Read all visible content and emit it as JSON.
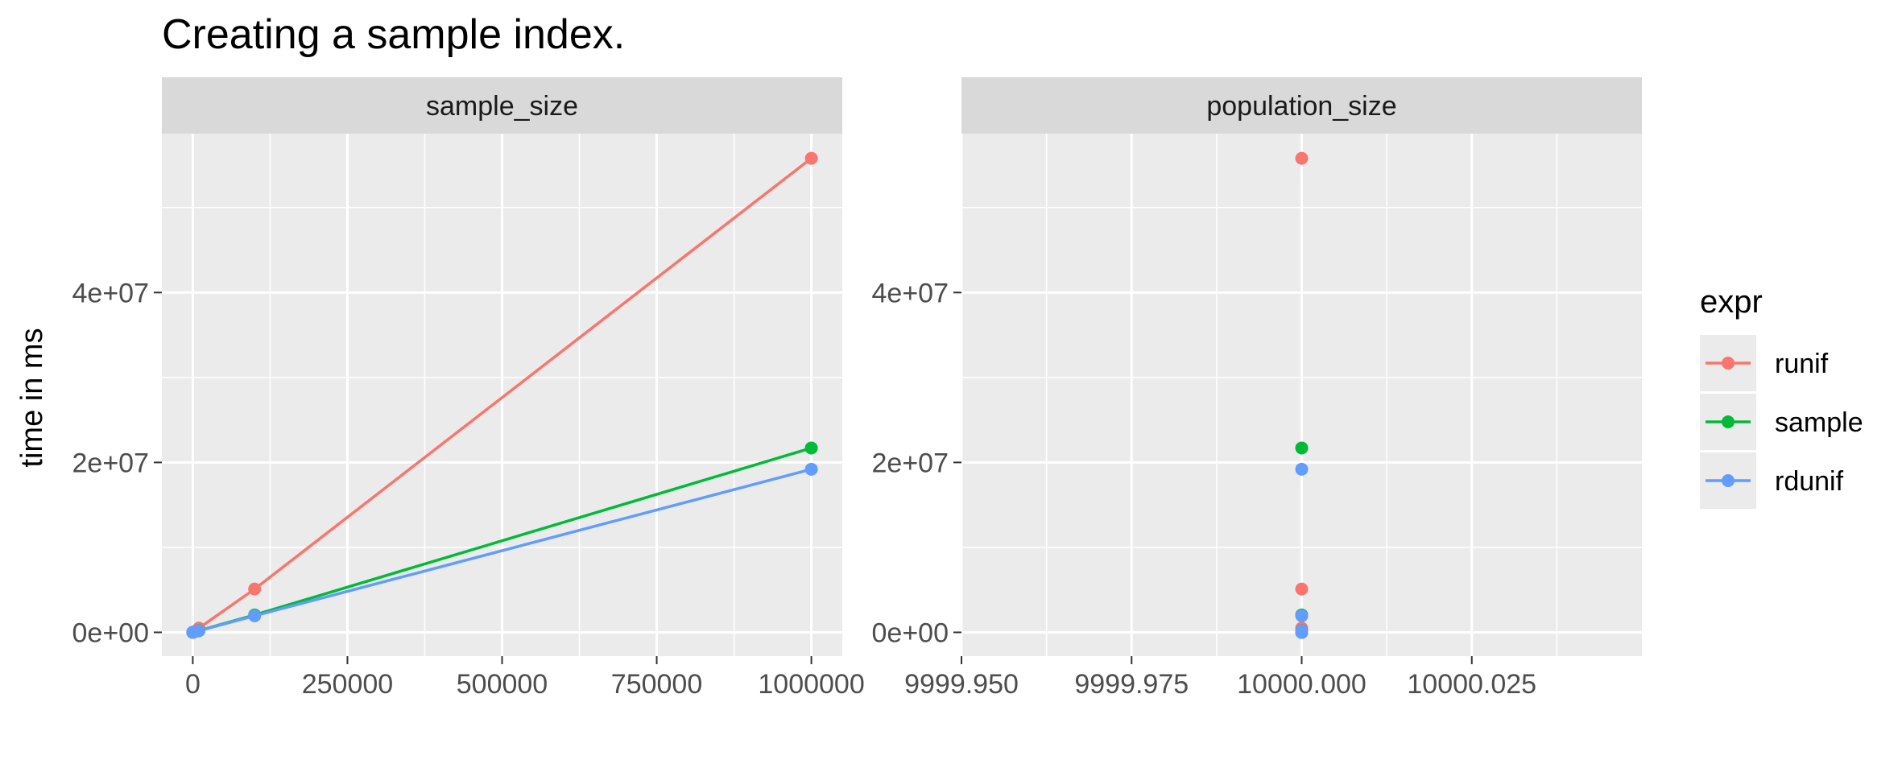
{
  "title": "Creating a sample index.",
  "ylabel": "time in ms",
  "legend": {
    "title": "expr",
    "entries": [
      "runif",
      "sample",
      "rdunif"
    ]
  },
  "colors": {
    "runif": "#F8766D",
    "sample": "#00BA38",
    "rdunif": "#619CFF",
    "panel_bg": "#EBEBEB",
    "strip_bg": "#D9D9D9",
    "grid": "#FFFFFF"
  },
  "chart_data": [
    {
      "type": "line",
      "facet": "sample_size",
      "x": [
        10,
        100,
        1000,
        10000,
        100000,
        1000000
      ],
      "series": [
        {
          "name": "runif",
          "values": [
            700,
            4200,
            40000,
            500000,
            5100000,
            55800000
          ]
        },
        {
          "name": "sample",
          "values": [
            500,
            2500,
            22000,
            210000,
            2050000,
            21700000
          ]
        },
        {
          "name": "rdunif",
          "values": [
            450,
            2300,
            20000,
            190000,
            1950000,
            19200000
          ]
        }
      ],
      "xlim": [
        -50000,
        1050000
      ],
      "ylim": [
        -2800000,
        58700000
      ],
      "xticks": [
        0,
        250000,
        500000,
        750000,
        1000000
      ],
      "xtick_labels": [
        "0",
        "250000",
        "500000",
        "750000",
        "1000000"
      ],
      "yticks": [
        0,
        20000000,
        40000000
      ],
      "ytick_labels": [
        "0e+00",
        "2e+07",
        "4e+07"
      ],
      "grid": true
    },
    {
      "type": "scatter",
      "facet": "population_size",
      "x": [
        10000,
        10000,
        10000,
        10000,
        10000,
        10000
      ],
      "series": [
        {
          "name": "runif",
          "values": [
            700,
            4200,
            40000,
            500000,
            5100000,
            55800000
          ]
        },
        {
          "name": "sample",
          "values": [
            500,
            2500,
            22000,
            210000,
            2050000,
            21700000
          ]
        },
        {
          "name": "rdunif",
          "values": [
            450,
            2300,
            20000,
            190000,
            1950000,
            19200000
          ]
        }
      ],
      "xlim": [
        9999.95,
        10000.05
      ],
      "ylim": [
        -2800000,
        58700000
      ],
      "xticks": [
        9999.95,
        9999.975,
        10000.0,
        10000.025
      ],
      "xtick_labels": [
        "9999.950",
        "9999.975",
        "10000.000",
        "10000.025"
      ],
      "yticks": [
        0,
        20000000,
        40000000
      ],
      "ytick_labels": [
        "0e+00",
        "2e+07",
        "4e+07"
      ],
      "grid": true
    }
  ]
}
